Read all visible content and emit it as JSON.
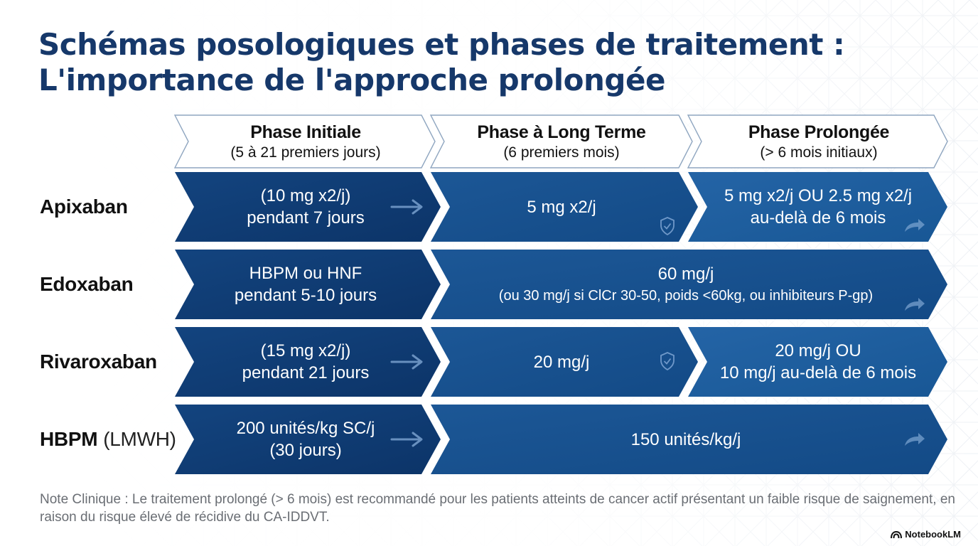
{
  "title": {
    "line1": "Schémas posologiques et phases de traitement :",
    "line2": "L'importance de l'approche prolongée"
  },
  "phases": [
    {
      "name": "Phase Initiale",
      "detail": "(5 à 21 premiers jours)"
    },
    {
      "name": "Phase à Long Terme",
      "detail": "(6 premiers mois)"
    },
    {
      "name": "Phase Prolongée",
      "detail": "(> 6 mois initiaux)"
    }
  ],
  "rows": [
    {
      "drug": "Apixaban",
      "initial": [
        "(10 mg x2/j)",
        "pendant 7 jours"
      ],
      "long_term": [
        "5 mg x2/j"
      ],
      "extended": [
        "5 mg x2/j OU 2.5 mg x2/j",
        "au-delà de 6 mois"
      ]
    },
    {
      "drug": "Edoxaban",
      "initial": [
        "HBPM ou HNF",
        "pendant 5-10 jours"
      ],
      "merged": [
        "60 mg/j",
        "(ou 30 mg/j si ClCr 30-50, poids <60kg, ou inhibiteurs P-gp)"
      ]
    },
    {
      "drug": "Rivaroxaban",
      "initial": [
        "(15 mg x2/j)",
        "pendant 21 jours"
      ],
      "long_term": [
        "20 mg/j"
      ],
      "extended": [
        "20 mg/j OU",
        "10 mg/j au-delà de 6 mois"
      ]
    },
    {
      "drug": "HBPM",
      "drug_suffix": "(LMWH)",
      "initial": [
        "200 unités/kg SC/j",
        "(30 jours)"
      ],
      "merged": [
        "150 unités/kg/j"
      ]
    }
  ],
  "note": "Note Clinique : Le traitement prolongé (> 6 mois) est recommandé pour les patients atteints de cancer actif présentant un faible risque de saignement, en raison du risque élevé de récidive du CA-IDDVT.",
  "brand": "NotebookLM",
  "colors": {
    "title": "#16386a",
    "chevron_dark": "#0f3a73",
    "chevron_mid": "#17508f",
    "chevron_light": "#1e5c9e",
    "header_outline": "#8fa6c0"
  },
  "icons": [
    "arrow-right-icon",
    "shield-check-icon",
    "share-arrow-icon",
    "notebooklm-logo-icon"
  ]
}
